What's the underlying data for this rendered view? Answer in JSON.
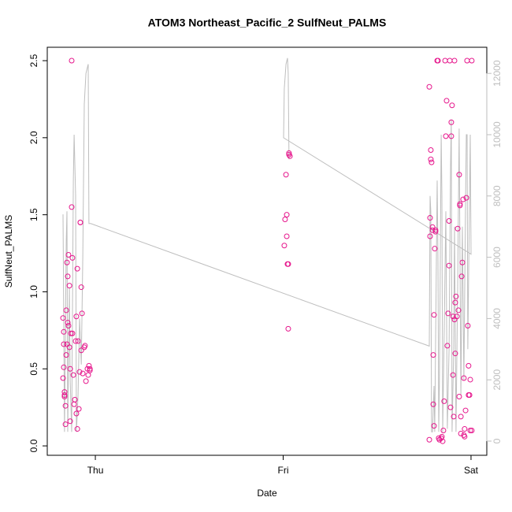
{
  "chart_data": {
    "type": "scatter",
    "title": "ATOM3 Northeast_Pacific_2 SulfNeut_PALMS",
    "x_label": "Date",
    "y_label": "SulfNeut_PALMS",
    "xlim": [
      -0.256,
      2.084
    ],
    "xticks": [
      {
        "value": 0,
        "label": "Thu"
      },
      {
        "value": 1,
        "label": "Fri"
      },
      {
        "value": 2,
        "label": "Sat"
      }
    ],
    "ylim": [
      -0.061,
      2.587
    ],
    "yticks": [
      {
        "value": 0,
        "label": "0.0"
      },
      0.5,
      {
        "value": 1,
        "label": "1.0"
      },
      1.5,
      {
        "value": 2,
        "label": "2.0"
      },
      2.5
    ],
    "y2lim": [
      -463,
      12853
    ],
    "y2ticks": [
      0,
      2000,
      4000,
      6000,
      8000,
      10000,
      12000
    ],
    "series": [
      {
        "color": "#e6168c",
        "x": [
          -0.172,
          -0.172,
          -0.168,
          -0.168,
          -0.168,
          -0.164,
          -0.164,
          -0.164,
          -0.159,
          -0.159,
          -0.155,
          -0.155,
          -0.151,
          -0.151,
          -0.147,
          -0.147,
          -0.143,
          -0.143,
          -0.138,
          -0.138,
          -0.134,
          -0.134,
          -0.13,
          -0.126,
          -0.126,
          -0.122,
          -0.122,
          -0.117,
          -0.113,
          -0.109,
          -0.105,
          -0.101,
          -0.101,
          -0.096,
          -0.096,
          -0.092,
          -0.088,
          -0.084,
          -0.08,
          -0.08,
          -0.075,
          -0.075,
          -0.071,
          -0.067,
          -0.059,
          -0.055,
          -0.05,
          -0.042,
          -0.038,
          -0.034,
          -0.029,
          -0.029,
          1.006,
          1.01,
          1.015,
          1.019,
          1.019,
          1.023,
          1.027,
          1.027,
          1.031,
          1.031,
          1.036,
          1.778,
          1.778,
          1.782,
          1.782,
          1.786,
          1.786,
          1.79,
          1.795,
          1.795,
          1.799,
          1.799,
          1.803,
          1.803,
          1.807,
          1.811,
          1.811,
          1.82,
          1.824,
          1.828,
          1.832,
          1.841,
          1.845,
          1.849,
          1.853,
          1.857,
          1.862,
          1.866,
          1.87,
          1.874,
          1.878,
          1.883,
          1.883,
          1.887,
          1.891,
          1.895,
          1.895,
          1.899,
          1.904,
          1.904,
          1.908,
          1.912,
          1.912,
          1.916,
          1.916,
          1.92,
          1.925,
          1.929,
          1.933,
          1.937,
          1.937,
          1.941,
          1.941,
          1.946,
          1.946,
          1.95,
          1.954,
          1.958,
          1.962,
          1.962,
          1.966,
          1.966,
          1.971,
          1.975,
          1.979,
          1.983,
          1.987,
          1.987,
          1.992,
          1.996,
          1.996,
          2.004,
          2.004
        ],
        "values": [
          0.44,
          0.83,
          0.74,
          0.66,
          0.51,
          0.35,
          0.33,
          0.32,
          0.26,
          0.14,
          0.59,
          0.88,
          0.66,
          1.19,
          0.8,
          1.1,
          1.24,
          0.78,
          1.04,
          0.64,
          0.16,
          0.5,
          0.73,
          2.5,
          1.55,
          1.22,
          0.73,
          0.46,
          0.27,
          0.3,
          0.68,
          0.84,
          0.21,
          1.15,
          0.11,
          0.68,
          0.24,
          0.48,
          1.45,
          1.45,
          1.03,
          0.62,
          0.86,
          0.47,
          0.64,
          0.65,
          0.42,
          0.5,
          0.46,
          0.52,
          0.49,
          0.5,
          1.3,
          1.47,
          1.76,
          1.5,
          1.36,
          1.18,
          1.18,
          0.76,
          1.89,
          1.9,
          1.88,
          2.33,
          0.04,
          1.36,
          1.48,
          1.86,
          1.92,
          1.84,
          1.4,
          1.42,
          0.59,
          0.27,
          0.85,
          0.13,
          1.28,
          1.4,
          1.39,
          2.5,
          2.5,
          0.05,
          0.04,
          0.05,
          0.06,
          0.03,
          0.1,
          0.29,
          2.5,
          2.01,
          2.24,
          0.65,
          0.86,
          1.17,
          1.46,
          2.5,
          0.25,
          2.1,
          2.01,
          2.21,
          0.46,
          0.84,
          0.19,
          2.5,
          0.82,
          0.93,
          0.6,
          0.97,
          0.84,
          1.41,
          0.88,
          1.76,
          0.32,
          1.56,
          1.57,
          0.08,
          0.19,
          1.1,
          1.19,
          1.6,
          0.44,
          0.07,
          0.06,
          0.11,
          0.23,
          1.61,
          2.5,
          0.78,
          0.52,
          0.33,
          0.33,
          0.1,
          0.43,
          2.5,
          0.1
        ]
      },
      {
        "color": "#bebebe",
        "axis": "y2",
        "x": [
          -0.172,
          -0.164,
          -0.155,
          -0.151,
          -0.147,
          -0.138,
          -0.134,
          -0.126,
          -0.117,
          -0.113,
          -0.105,
          -0.101,
          -0.092,
          -0.084,
          -0.075,
          -0.067,
          -0.059,
          -0.05,
          -0.042,
          -0.038,
          -0.034,
          -0.025,
          1.778,
          1.782,
          1.786,
          1.79,
          1.795,
          1.803,
          1.807,
          1.811,
          1.82,
          1.824,
          1.828,
          1.832,
          1.841,
          1.845,
          1.849,
          1.857,
          1.866,
          1.874,
          1.883,
          1.891,
          1.895,
          1.899,
          1.908,
          1.912,
          1.92,
          1.929,
          1.937,
          1.946,
          1.954,
          1.962,
          1.971,
          1.975,
          1.979,
          1.983,
          1.992,
          1.996,
          2.0,
          1.002,
          1.006,
          1.015,
          1.023,
          1.027,
          1.031
        ],
        "values": [
          7400,
          300,
          6500,
          7500,
          300,
          5000,
          2000,
          300,
          8500,
          10000,
          8000,
          300,
          1500,
          4000,
          2500,
          6000,
          11000,
          12000,
          12200,
          12300,
          7100,
          7100,
          3100,
          8000,
          7500,
          300,
          300,
          1800,
          300,
          3000,
          8500,
          6000,
          300,
          2000,
          10000,
          8000,
          300,
          3500,
          7500,
          400,
          3000,
          9000,
          10500,
          300,
          3000,
          7000,
          300,
          5000,
          10200,
          1500,
          7000,
          2000,
          8000,
          10000,
          10000,
          3000,
          8000,
          10000,
          6100,
          9900,
          11500,
          12300,
          12500,
          12000,
          9200
        ]
      }
    ]
  }
}
